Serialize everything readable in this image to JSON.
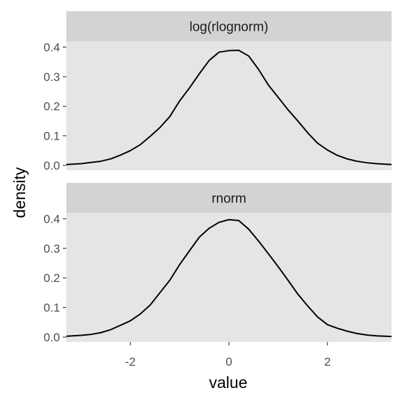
{
  "chart_data": {
    "type": "line",
    "xlabel": "value",
    "ylabel": "density",
    "xlim": [
      -3.3,
      3.3
    ],
    "ylim": [
      0,
      0.42
    ],
    "x_ticks": [
      -2,
      0,
      2
    ],
    "x_tick_labels": [
      "-2",
      "0",
      "2"
    ],
    "y_ticks": [
      0.0,
      0.1,
      0.2,
      0.3,
      0.4
    ],
    "y_tick_labels": [
      "0.0",
      "0.1",
      "0.2",
      "0.3",
      "0.4"
    ],
    "grid": false,
    "panel_color": "#e5e5e5",
    "strip_color": "#d3d3d3",
    "line_color": "#000000",
    "panels": [
      {
        "label": "log(rlognorm)",
        "x": [
          -3.3,
          -3.0,
          -2.8,
          -2.6,
          -2.4,
          -2.2,
          -2.0,
          -1.8,
          -1.6,
          -1.4,
          -1.2,
          -1.0,
          -0.8,
          -0.6,
          -0.4,
          -0.2,
          0.0,
          0.2,
          0.4,
          0.6,
          0.8,
          1.0,
          1.2,
          1.4,
          1.6,
          1.8,
          2.0,
          2.2,
          2.4,
          2.6,
          2.8,
          3.0,
          3.3
        ],
        "y": [
          0.003,
          0.006,
          0.01,
          0.014,
          0.022,
          0.035,
          0.05,
          0.07,
          0.098,
          0.128,
          0.165,
          0.218,
          0.262,
          0.31,
          0.355,
          0.383,
          0.388,
          0.389,
          0.37,
          0.325,
          0.272,
          0.23,
          0.188,
          0.15,
          0.11,
          0.075,
          0.052,
          0.034,
          0.022,
          0.014,
          0.009,
          0.006,
          0.003
        ]
      },
      {
        "label": "rnorm",
        "x": [
          -3.3,
          -3.0,
          -2.8,
          -2.6,
          -2.4,
          -2.2,
          -2.0,
          -1.8,
          -1.6,
          -1.4,
          -1.2,
          -1.0,
          -0.8,
          -0.6,
          -0.4,
          -0.2,
          0.0,
          0.2,
          0.4,
          0.6,
          0.8,
          1.0,
          1.2,
          1.4,
          1.6,
          1.8,
          2.0,
          2.2,
          2.4,
          2.6,
          2.8,
          3.0,
          3.3
        ],
        "y": [
          0.003,
          0.006,
          0.009,
          0.015,
          0.025,
          0.04,
          0.055,
          0.078,
          0.108,
          0.15,
          0.192,
          0.245,
          0.292,
          0.338,
          0.368,
          0.388,
          0.397,
          0.394,
          0.365,
          0.325,
          0.282,
          0.238,
          0.192,
          0.145,
          0.105,
          0.068,
          0.042,
          0.03,
          0.02,
          0.012,
          0.007,
          0.004,
          0.002
        ]
      }
    ]
  }
}
